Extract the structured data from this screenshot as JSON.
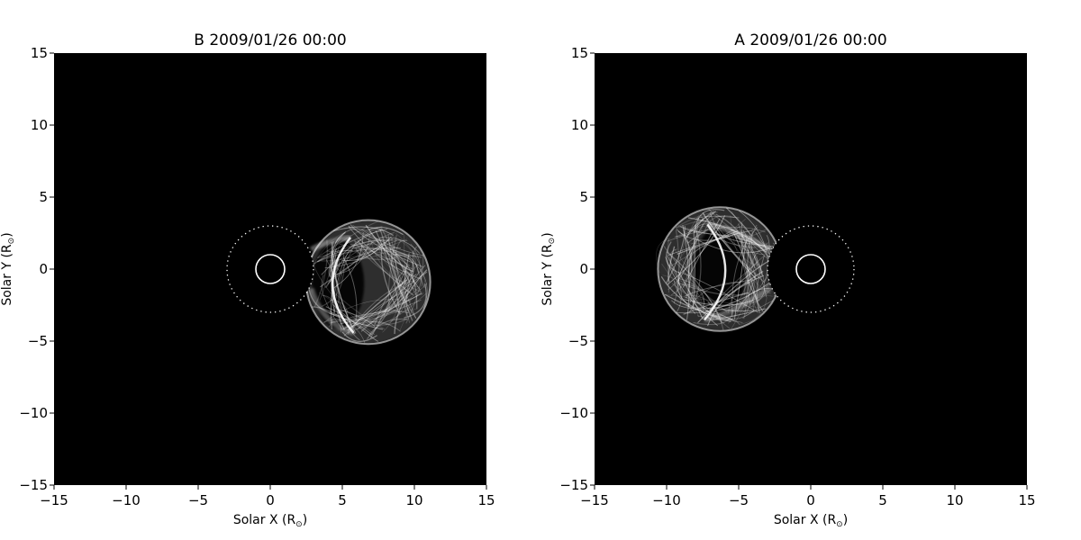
{
  "colors": {
    "background": "#ffffff",
    "plot_bg": "#000000",
    "feature": "#ffffff",
    "text": "#000000"
  },
  "chart_data": [
    {
      "type": "image",
      "title": "B 2009/01/26 00:00",
      "xlabel": "Solar X (R",
      "ylabel": "Solar Y (R",
      "unit_symbol": "⊙",
      "xlim": [
        -15,
        15
      ],
      "ylim": [
        -15,
        15
      ],
      "xticks": [
        -15,
        -10,
        -5,
        0,
        5,
        10,
        15
      ],
      "yticks": [
        -15,
        -10,
        -5,
        0,
        5,
        10,
        15
      ],
      "xtick_labels": [
        "−15",
        "−10",
        "−5",
        "0",
        "5",
        "10",
        "15"
      ],
      "ytick_labels": [
        "−15",
        "−10",
        "−5",
        "0",
        "5",
        "10",
        "15"
      ],
      "occulter_radius": 3,
      "sun_radius": 1,
      "cme": {
        "center": [
          6.8,
          -0.9
        ],
        "radius": 4.3,
        "inner_tip_x": 3.2,
        "side": "right"
      }
    },
    {
      "type": "image",
      "title": "A 2009/01/26 00:00",
      "xlabel": "Solar X (R",
      "ylabel": "Solar Y (R",
      "unit_symbol": "⊙",
      "xlim": [
        -15,
        15
      ],
      "ylim": [
        -15,
        15
      ],
      "xticks": [
        -15,
        -10,
        -5,
        0,
        5,
        10,
        15
      ],
      "yticks": [
        -15,
        -10,
        -5,
        0,
        5,
        10,
        15
      ],
      "xtick_labels": [
        "−15",
        "−10",
        "−5",
        "0",
        "5",
        "10",
        "15"
      ],
      "ytick_labels": [
        "−15",
        "−10",
        "−5",
        "0",
        "5",
        "10",
        "15"
      ],
      "occulter_radius": 3,
      "sun_radius": 1,
      "cme": {
        "center": [
          -6.3,
          0.0
        ],
        "radius": 4.3,
        "inner_tip_x": -4.8,
        "side": "left"
      }
    }
  ]
}
